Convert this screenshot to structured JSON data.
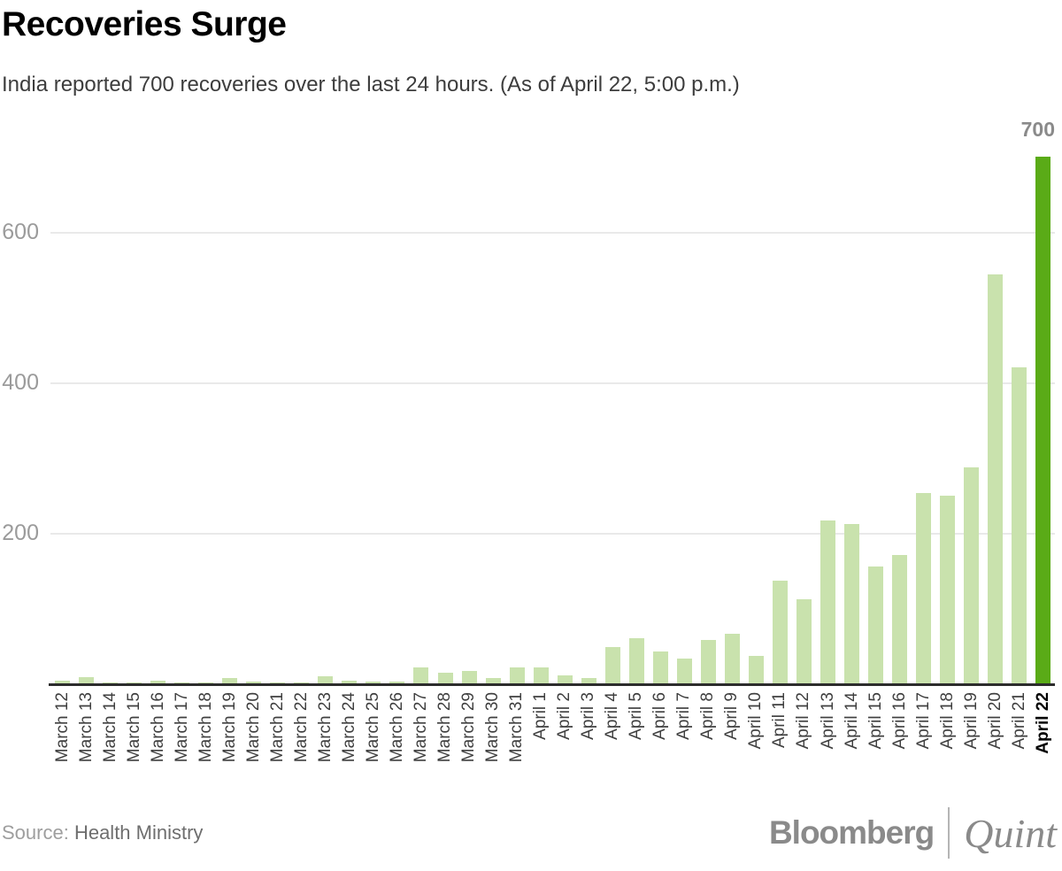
{
  "header": {
    "title": "Recoveries Surge",
    "subtitle": "India reported 700 recoveries over the last 24 hours. (As of April 22, 5:00 p.m.)"
  },
  "chart_data": {
    "type": "bar",
    "title": "Recoveries Surge",
    "xlabel": "",
    "ylabel": "",
    "ylim": [
      0,
      700
    ],
    "yticks": [
      200,
      400,
      600
    ],
    "grid": "horizontal",
    "categories": [
      "March 12",
      "March 13",
      "March 14",
      "March 15",
      "March 16",
      "March 17",
      "March 18",
      "March 19",
      "March 20",
      "March 21",
      "March 22",
      "March 23",
      "March 24",
      "March 25",
      "March 26",
      "March 27",
      "March 28",
      "March 29",
      "March 30",
      "March 31",
      "April 1",
      "April 2",
      "April 3",
      "April 4",
      "April 5",
      "April 6",
      "April 7",
      "April 8",
      "April 9",
      "April 10",
      "April 11",
      "April 12",
      "April 13",
      "April 14",
      "April 15",
      "April 16",
      "April 17",
      "April 18",
      "April 19",
      "April 20",
      "April 21",
      "April 22"
    ],
    "values": [
      3,
      8,
      1,
      1,
      3,
      1,
      1,
      7,
      2,
      1,
      1,
      9,
      4,
      2,
      2,
      21,
      14,
      16,
      7,
      21,
      21,
      11,
      7,
      48,
      60,
      42,
      33,
      58,
      66,
      36,
      137,
      112,
      216,
      212,
      155,
      170,
      253,
      249,
      287,
      544,
      420,
      700
    ],
    "highlight_index": 41,
    "annotation": {
      "text": "700",
      "category": "April 22"
    },
    "colors": {
      "bar": "#c9e2ad",
      "bar_highlight": "#5aab17",
      "gridline": "#e9e9e9",
      "axis": "#2d2d2d"
    }
  },
  "footer": {
    "source_label": "Source:",
    "source_value": "Health Ministry",
    "logo_bloomberg": "Bloomberg",
    "logo_quint": "Quint"
  }
}
